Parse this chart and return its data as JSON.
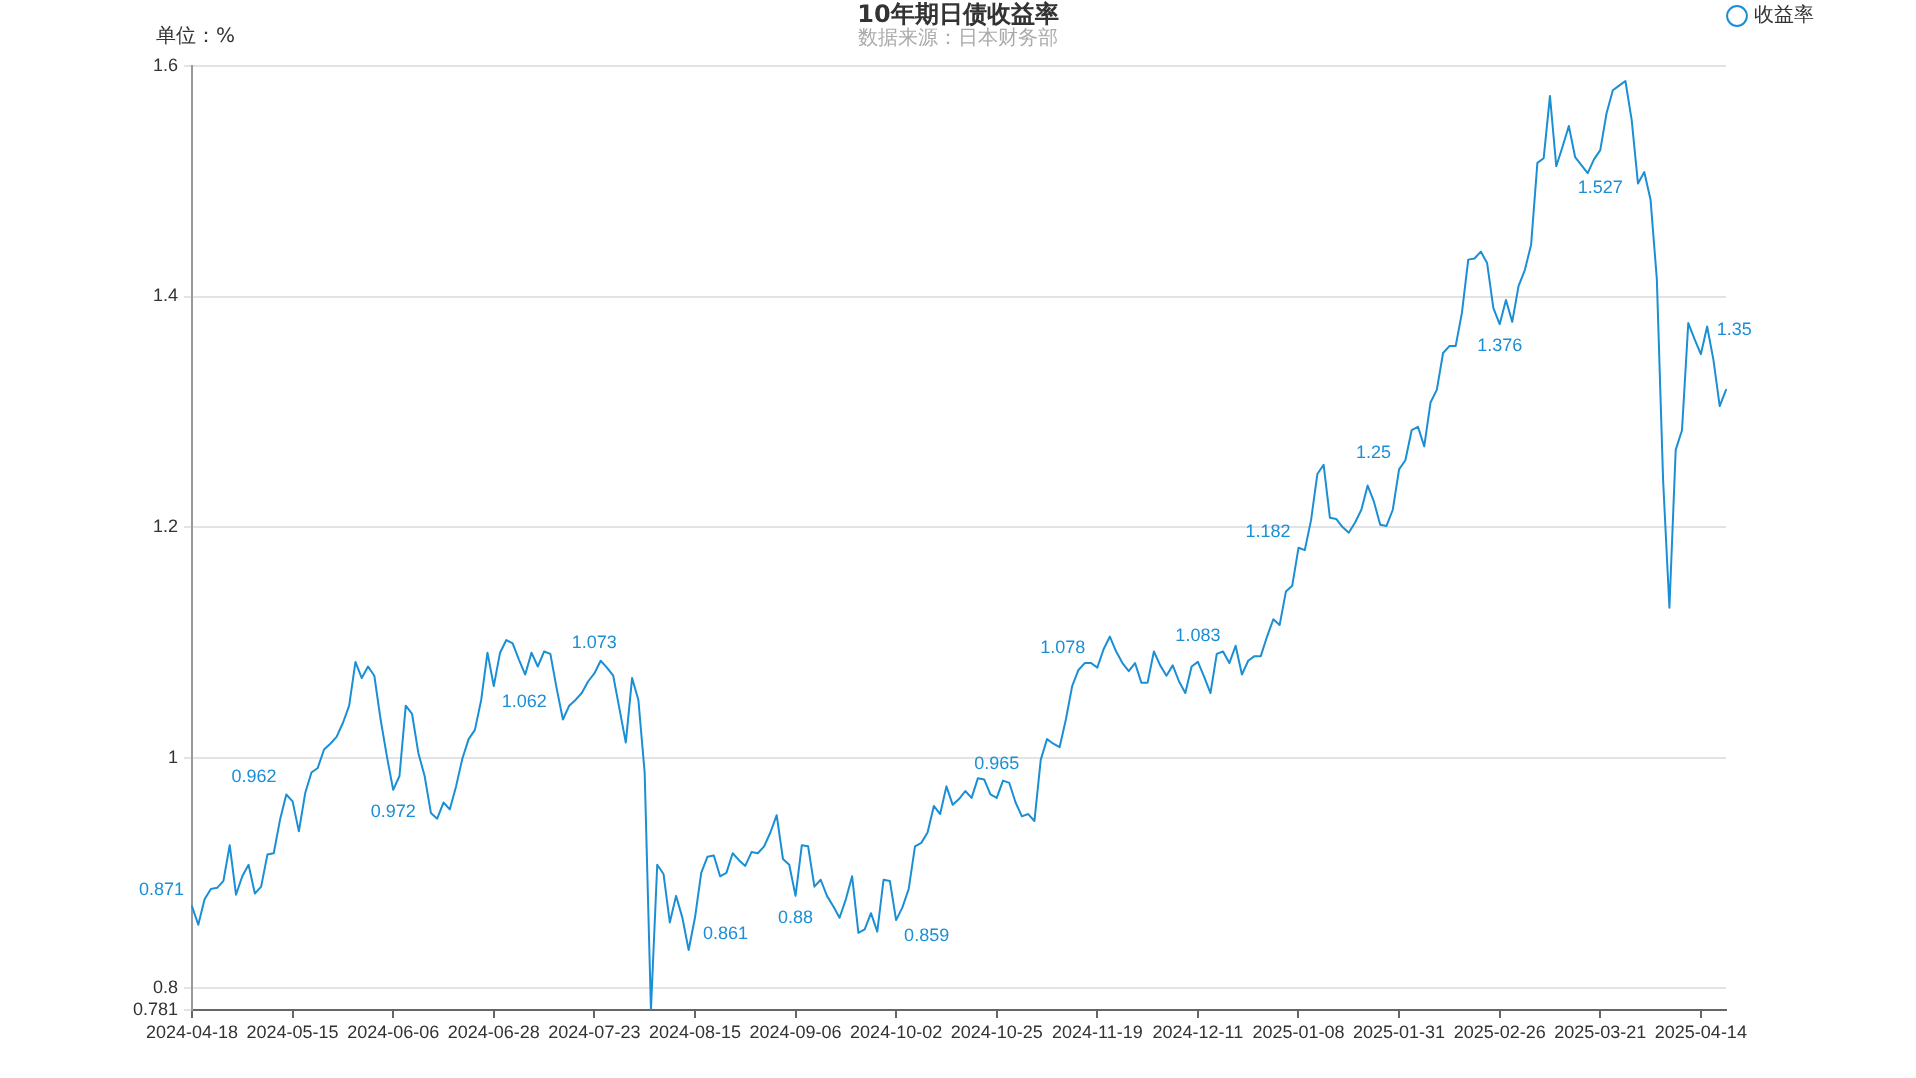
{
  "chart_data": {
    "type": "line",
    "title": "10年期日债收益率",
    "subtitle": "数据来源：日本财务部",
    "ylabel": "单位：%",
    "categories": [
      "2024-04-18",
      null,
      null,
      null,
      null,
      null,
      null,
      null,
      null,
      null,
      null,
      null,
      null,
      null,
      null,
      null,
      "2024-05-15",
      null,
      null,
      null,
      null,
      null,
      null,
      null,
      null,
      null,
      null,
      null,
      null,
      null,
      null,
      null,
      "2024-06-06",
      null,
      null,
      null,
      null,
      null,
      null,
      null,
      null,
      null,
      null,
      null,
      null,
      null,
      null,
      null,
      "2024-06-28",
      null,
      null,
      null,
      null,
      null,
      null,
      null,
      null,
      null,
      null,
      null,
      null,
      null,
      null,
      null,
      "2024-07-23",
      null,
      null,
      null,
      null,
      null,
      null,
      null,
      null,
      null,
      null,
      null,
      null,
      null,
      null,
      null,
      "2024-08-15",
      null,
      null,
      null,
      null,
      null,
      null,
      null,
      null,
      null,
      null,
      null,
      null,
      null,
      null,
      null,
      "2024-09-06",
      null,
      null,
      null,
      null,
      null,
      null,
      null,
      null,
      null,
      null,
      null,
      null,
      null,
      null,
      null,
      "2024-10-02",
      null,
      null,
      null,
      null,
      null,
      null,
      null,
      null,
      null,
      null,
      null,
      null,
      null,
      null,
      null,
      "2024-10-25",
      null,
      null,
      null,
      null,
      null,
      null,
      null,
      null,
      null,
      null,
      null,
      null,
      null,
      null,
      null,
      "2024-11-19",
      null,
      null,
      null,
      null,
      null,
      null,
      null,
      null,
      null,
      null,
      null,
      null,
      null,
      null,
      null,
      "2024-12-11",
      null,
      null,
      null,
      null,
      null,
      null,
      null,
      null,
      null,
      null,
      null,
      null,
      null,
      null,
      null,
      "2025-01-08",
      null,
      null,
      null,
      null,
      null,
      null,
      null,
      null,
      null,
      null,
      null,
      null,
      null,
      null,
      null,
      "2025-01-31",
      null,
      null,
      null,
      null,
      null,
      null,
      null,
      null,
      null,
      null,
      null,
      null,
      null,
      null,
      null,
      "2025-02-26",
      null,
      null,
      null,
      null,
      null,
      null,
      null,
      null,
      null,
      null,
      null,
      null,
      null,
      null,
      null,
      "2025-03-21",
      null,
      null,
      null,
      null,
      null,
      null,
      null,
      null,
      null,
      null,
      null,
      null,
      null,
      null,
      null,
      "2025-04-14",
      null,
      null,
      null,
      null
    ],
    "series": [
      {
        "name": "收益率",
        "color": "#1a8fd5",
        "values": [
          0.871,
          0.855,
          0.877,
          0.886,
          0.887,
          0.893,
          0.924,
          0.881,
          0.897,
          0.907,
          0.882,
          0.888,
          0.916,
          0.917,
          0.946,
          0.968,
          0.962,
          0.936,
          0.969,
          0.987,
          0.991,
          1.007,
          1.012,
          1.018,
          1.03,
          1.045,
          1.083,
          1.069,
          1.079,
          1.071,
          1.033,
          1.001,
          0.972,
          0.984,
          1.045,
          1.038,
          1.004,
          0.984,
          0.952,
          0.947,
          0.961,
          0.955,
          0.975,
          0.999,
          1.016,
          1.024,
          1.05,
          1.091,
          1.062,
          1.091,
          1.102,
          1.099,
          1.085,
          1.072,
          1.091,
          1.079,
          1.092,
          1.09,
          1.06,
          1.033,
          1.045,
          1.05,
          1.056,
          1.066,
          1.073,
          1.084,
          1.078,
          1.071,
          1.042,
          1.013,
          1.069,
          1.05,
          0.987,
          0.781,
          0.907,
          0.899,
          0.857,
          0.88,
          0.861,
          0.833,
          0.861,
          0.9,
          0.914,
          0.915,
          0.897,
          0.9,
          0.917,
          0.911,
          0.906,
          0.918,
          0.917,
          0.923,
          0.935,
          0.95,
          0.912,
          0.907,
          0.88,
          0.924,
          0.923,
          0.888,
          0.894,
          0.88,
          0.871,
          0.861,
          0.877,
          0.897,
          0.848,
          0.851,
          0.865,
          0.849,
          0.894,
          0.893,
          0.859,
          0.87,
          0.886,
          0.923,
          0.926,
          0.935,
          0.958,
          0.951,
          0.975,
          0.959,
          0.964,
          0.971,
          0.965,
          0.982,
          0.981,
          0.968,
          0.965,
          0.98,
          0.978,
          0.961,
          0.949,
          0.951,
          0.945,
          0.998,
          1.016,
          1.012,
          1.009,
          1.033,
          1.062,
          1.076,
          1.082,
          1.082,
          1.078,
          1.094,
          1.105,
          1.092,
          1.082,
          1.075,
          1.082,
          1.065,
          1.065,
          1.092,
          1.08,
          1.071,
          1.08,
          1.066,
          1.056,
          1.079,
          1.083,
          1.07,
          1.056,
          1.09,
          1.092,
          1.082,
          1.097,
          1.072,
          1.084,
          1.088,
          1.088,
          1.105,
          1.12,
          1.115,
          1.144,
          1.149,
          1.182,
          1.18,
          1.206,
          1.246,
          1.254,
          1.208,
          1.207,
          1.2,
          1.195,
          1.204,
          1.215,
          1.236,
          1.222,
          1.202,
          1.201,
          1.215,
          1.25,
          1.258,
          1.284,
          1.287,
          1.27,
          1.308,
          1.319,
          1.351,
          1.357,
          1.357,
          1.386,
          1.432,
          1.433,
          1.439,
          1.429,
          1.39,
          1.376,
          1.397,
          1.378,
          1.409,
          1.423,
          1.445,
          1.516,
          1.52,
          1.574,
          1.513,
          1.53,
          1.548,
          1.521,
          1.514,
          1.507,
          1.519,
          1.527,
          1.559,
          1.579,
          1.583,
          1.587,
          1.553,
          1.498,
          1.508,
          1.484,
          1.415,
          1.24,
          1.13,
          1.267,
          1.284,
          1.377,
          1.363,
          1.35,
          1.374,
          1.345,
          1.305,
          1.319
        ],
        "value_labels": [
          "0.871",
          null,
          null,
          null,
          null,
          null,
          null,
          null,
          null,
          null,
          null,
          null,
          null,
          null,
          null,
          null,
          "0.962",
          null,
          null,
          null,
          null,
          null,
          null,
          null,
          null,
          null,
          null,
          null,
          null,
          null,
          null,
          null,
          "0.972",
          null,
          null,
          null,
          null,
          null,
          null,
          null,
          null,
          null,
          null,
          null,
          null,
          null,
          null,
          null,
          "1.062",
          null,
          null,
          null,
          null,
          null,
          null,
          null,
          null,
          null,
          null,
          null,
          null,
          null,
          null,
          null,
          "1.073",
          null,
          null,
          null,
          null,
          null,
          null,
          null,
          null,
          null,
          null,
          null,
          null,
          null,
          null,
          null,
          "0.861",
          null,
          null,
          null,
          null,
          null,
          null,
          null,
          null,
          null,
          null,
          null,
          null,
          null,
          null,
          null,
          "0.88",
          null,
          null,
          null,
          null,
          null,
          null,
          null,
          null,
          null,
          null,
          null,
          null,
          null,
          null,
          null,
          "0.859",
          null,
          null,
          null,
          null,
          null,
          null,
          null,
          null,
          null,
          null,
          null,
          null,
          null,
          null,
          null,
          "0.965",
          null,
          null,
          null,
          null,
          null,
          null,
          null,
          null,
          null,
          null,
          null,
          null,
          null,
          null,
          null,
          "1.078",
          null,
          null,
          null,
          null,
          null,
          null,
          null,
          null,
          null,
          null,
          null,
          null,
          null,
          null,
          null,
          "1.083",
          null,
          null,
          null,
          null,
          null,
          null,
          null,
          null,
          null,
          null,
          null,
          null,
          null,
          null,
          null,
          "1.182",
          null,
          null,
          null,
          null,
          null,
          null,
          null,
          null,
          null,
          null,
          null,
          null,
          null,
          null,
          null,
          "1.25",
          null,
          null,
          null,
          null,
          null,
          null,
          null,
          null,
          null,
          null,
          null,
          null,
          null,
          null,
          null,
          "1.376",
          null,
          null,
          null,
          null,
          null,
          null,
          null,
          null,
          null,
          null,
          null,
          null,
          null,
          null,
          null,
          "1.527",
          null,
          null,
          null,
          null,
          null,
          null,
          null,
          null,
          null,
          null,
          null,
          null,
          null,
          null,
          null,
          "1.35",
          null,
          null,
          null,
          null
        ]
      }
    ],
    "ylim": [
      0.781,
      1.6
    ],
    "yticks": [
      0.781,
      0.8,
      1,
      1.2,
      1.4,
      1.6
    ],
    "grid": "y",
    "legend": "top right"
  }
}
